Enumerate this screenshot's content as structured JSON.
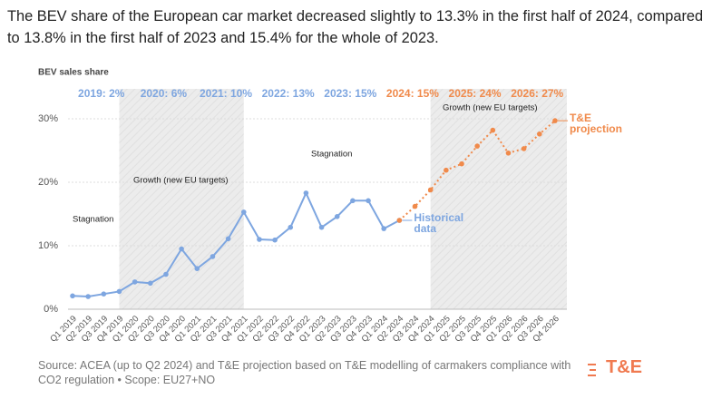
{
  "header": {
    "text": "The BEV share of the European car market decreased slightly to 13.3% in the first half of 2024, compared to 13.8% in the first half of 2023 and 15.4% for the whole of 2023."
  },
  "chart_data": {
    "type": "line",
    "y_axis_title": "BEV sales share",
    "categories": [
      "Q1 2019",
      "Q2 2019",
      "Q3 2019",
      "Q4 2019",
      "Q1 2020",
      "Q2 2020",
      "Q3 2020",
      "Q4 2020",
      "Q1 2021",
      "Q2 2021",
      "Q3 2021",
      "Q4 2021",
      "Q1 2022",
      "Q2 2022",
      "Q3 2022",
      "Q4 2022",
      "Q1 2023",
      "Q2 2023",
      "Q3 2023",
      "Q4 2023",
      "Q1 2024",
      "Q2 2024",
      "Q3 2024",
      "Q4 2024",
      "Q1 2025",
      "Q2 2025",
      "Q3 2025",
      "Q4 2025",
      "Q1 2026",
      "Q2 2026",
      "Q3 2026",
      "Q4 2026"
    ],
    "series": [
      {
        "name": "Historical data",
        "color": "#7ea6e0",
        "dashed": false,
        "values": [
          2.1,
          2.0,
          2.4,
          2.8,
          4.3,
          4.1,
          5.5,
          9.5,
          6.4,
          8.3,
          11.1,
          15.3,
          11.0,
          10.9,
          12.9,
          18.3,
          12.9,
          14.6,
          17.1,
          17.1,
          12.7,
          14.0,
          null,
          null,
          null,
          null,
          null,
          null,
          null,
          null,
          null,
          null
        ]
      },
      {
        "name": "T&E projection",
        "color": "#f08a4b",
        "dashed": true,
        "values": [
          null,
          null,
          null,
          null,
          null,
          null,
          null,
          null,
          null,
          null,
          null,
          null,
          null,
          null,
          null,
          null,
          null,
          null,
          null,
          null,
          null,
          14.0,
          16.2,
          18.8,
          21.9,
          22.9,
          25.7,
          28.2,
          24.6,
          25.3,
          27.6,
          29.7
        ]
      }
    ],
    "ylim": [
      0,
      33
    ],
    "yticks": [
      {
        "value": 0,
        "label": "0%"
      },
      {
        "value": 10,
        "label": "10%"
      },
      {
        "value": 20,
        "label": "20%"
      },
      {
        "value": 30,
        "label": "30%"
      }
    ],
    "grid": true,
    "year_labels": [
      {
        "text": "2019: 2%",
        "color": "#7ea6e0"
      },
      {
        "text": "2020: 6%",
        "color": "#7ea6e0"
      },
      {
        "text": "2021: 10%",
        "color": "#7ea6e0"
      },
      {
        "text": "2022: 13%",
        "color": "#7ea6e0"
      },
      {
        "text": "2023: 15%",
        "color": "#7ea6e0"
      },
      {
        "text": "2024: 15%",
        "color": "#f08a4b"
      },
      {
        "text": "2025: 24%",
        "color": "#f08a4b"
      },
      {
        "text": "2026: 27%",
        "color": "#f08a4b"
      }
    ],
    "periods": [
      "Stagnation",
      "Growth (new EU targets)",
      "Stagnation",
      "Growth (new EU targets)"
    ]
  },
  "footer": {
    "source": "Source: ACEA (up to Q2 2024) and T&E projection based on T&E modelling of carmakers compliance with CO2 regulation • Scope: EU27+NO",
    "logo": "T&E"
  }
}
